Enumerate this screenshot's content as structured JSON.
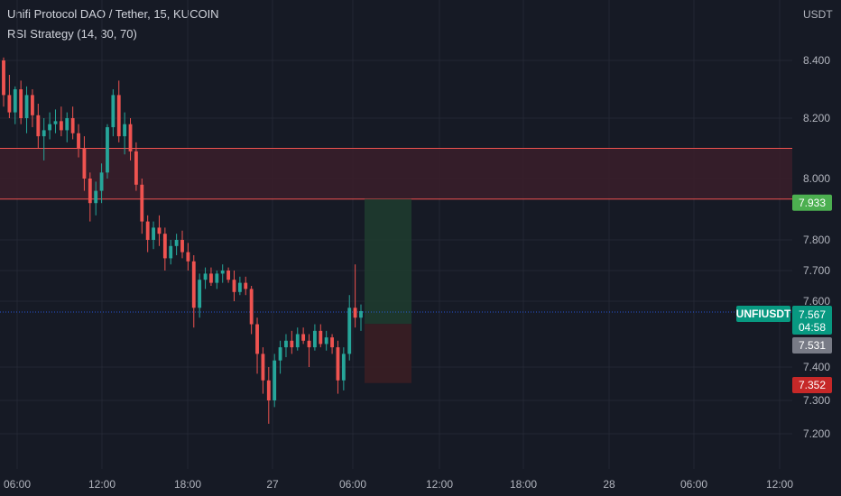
{
  "header": {
    "symbol_title": "Unifi Protocol DAO / Tether, 15, KUCOIN",
    "indicator": "RSI Strategy (14, 30, 70)",
    "currency": "USDT"
  },
  "price_tags": {
    "zone_bottom": "7.933",
    "symbol_label": "UNFIUSDT",
    "last_price": "7.567",
    "countdown": "04:58",
    "entry": "7.531",
    "stop": "7.352"
  },
  "colors": {
    "background": "#161a25",
    "grid": "#232733",
    "up": "#26a69a",
    "down": "#ef5350",
    "zone_line": "#ef5350",
    "zone_fill": "#3a1f2a",
    "target_fill": "#1e3b2f",
    "stop_fill": "#3a1e23",
    "tag_green": "#4caf50",
    "tag_teal": "#089981",
    "tag_gray": "#787b86",
    "tag_red": "#c62828"
  },
  "chart_data": {
    "type": "candlestick",
    "y_axis_ticks": [
      "8.400",
      "8.200",
      "8.000",
      "7.800",
      "7.700",
      "7.600",
      "7.400",
      "7.300",
      "7.200"
    ],
    "x_axis_ticks": [
      "06:00",
      "12:00",
      "18:00",
      "27",
      "06:00",
      "12:00",
      "18:00",
      "28",
      "06:00",
      "12:00"
    ],
    "ylim": [
      7.16,
      8.55
    ],
    "resistance_zone": {
      "low": 7.933,
      "high": 8.1
    },
    "position": {
      "entry": 7.531,
      "target": 7.933,
      "stop": 7.352
    },
    "last_price": 7.567,
    "candles": [
      {
        "o": 8.4,
        "h": 8.41,
        "l": 8.24,
        "c": 8.28
      },
      {
        "o": 8.28,
        "h": 8.35,
        "l": 8.2,
        "c": 8.22
      },
      {
        "o": 8.22,
        "h": 8.31,
        "l": 8.18,
        "c": 8.3
      },
      {
        "o": 8.3,
        "h": 8.33,
        "l": 8.18,
        "c": 8.2
      },
      {
        "o": 8.2,
        "h": 8.31,
        "l": 8.15,
        "c": 8.28
      },
      {
        "o": 8.28,
        "h": 8.3,
        "l": 8.17,
        "c": 8.21
      },
      {
        "o": 8.21,
        "h": 8.25,
        "l": 8.1,
        "c": 8.14
      },
      {
        "o": 8.14,
        "h": 8.2,
        "l": 8.06,
        "c": 8.16
      },
      {
        "o": 8.16,
        "h": 8.22,
        "l": 8.13,
        "c": 8.18
      },
      {
        "o": 8.18,
        "h": 8.23,
        "l": 8.15,
        "c": 8.19
      },
      {
        "o": 8.19,
        "h": 8.24,
        "l": 8.14,
        "c": 8.16
      },
      {
        "o": 8.16,
        "h": 8.22,
        "l": 8.12,
        "c": 8.2
      },
      {
        "o": 8.2,
        "h": 8.24,
        "l": 8.13,
        "c": 8.15
      },
      {
        "o": 8.15,
        "h": 8.18,
        "l": 8.07,
        "c": 8.1
      },
      {
        "o": 8.1,
        "h": 8.14,
        "l": 7.96,
        "c": 8.0
      },
      {
        "o": 8.0,
        "h": 8.02,
        "l": 7.86,
        "c": 7.92
      },
      {
        "o": 7.92,
        "h": 7.99,
        "l": 7.88,
        "c": 7.96
      },
      {
        "o": 7.96,
        "h": 8.05,
        "l": 7.92,
        "c": 8.02
      },
      {
        "o": 8.02,
        "h": 8.18,
        "l": 8.0,
        "c": 8.17
      },
      {
        "o": 8.17,
        "h": 8.3,
        "l": 8.14,
        "c": 8.28
      },
      {
        "o": 8.28,
        "h": 8.33,
        "l": 8.12,
        "c": 8.14
      },
      {
        "o": 8.14,
        "h": 8.22,
        "l": 8.08,
        "c": 8.18
      },
      {
        "o": 8.18,
        "h": 8.2,
        "l": 8.06,
        "c": 8.09
      },
      {
        "o": 8.09,
        "h": 8.12,
        "l": 7.96,
        "c": 7.98
      },
      {
        "o": 7.98,
        "h": 8.0,
        "l": 7.82,
        "c": 7.86
      },
      {
        "o": 7.86,
        "h": 7.88,
        "l": 7.76,
        "c": 7.8
      },
      {
        "o": 7.8,
        "h": 7.86,
        "l": 7.77,
        "c": 7.84
      },
      {
        "o": 7.84,
        "h": 7.88,
        "l": 7.78,
        "c": 7.82
      },
      {
        "o": 7.82,
        "h": 7.84,
        "l": 7.7,
        "c": 7.74
      },
      {
        "o": 7.74,
        "h": 7.8,
        "l": 7.72,
        "c": 7.78
      },
      {
        "o": 7.78,
        "h": 7.82,
        "l": 7.75,
        "c": 7.8
      },
      {
        "o": 7.8,
        "h": 7.83,
        "l": 7.74,
        "c": 7.76
      },
      {
        "o": 7.76,
        "h": 7.79,
        "l": 7.7,
        "c": 7.73
      },
      {
        "o": 7.73,
        "h": 7.75,
        "l": 7.52,
        "c": 7.58
      },
      {
        "o": 7.58,
        "h": 7.69,
        "l": 7.55,
        "c": 7.67
      },
      {
        "o": 7.67,
        "h": 7.71,
        "l": 7.64,
        "c": 7.69
      },
      {
        "o": 7.69,
        "h": 7.71,
        "l": 7.65,
        "c": 7.66
      },
      {
        "o": 7.66,
        "h": 7.7,
        "l": 7.64,
        "c": 7.69
      },
      {
        "o": 7.69,
        "h": 7.72,
        "l": 7.66,
        "c": 7.7
      },
      {
        "o": 7.7,
        "h": 7.71,
        "l": 7.66,
        "c": 7.67
      },
      {
        "o": 7.67,
        "h": 7.7,
        "l": 7.6,
        "c": 7.63
      },
      {
        "o": 7.63,
        "h": 7.68,
        "l": 7.62,
        "c": 7.66
      },
      {
        "o": 7.66,
        "h": 7.68,
        "l": 7.62,
        "c": 7.64
      },
      {
        "o": 7.64,
        "h": 7.65,
        "l": 7.5,
        "c": 7.53
      },
      {
        "o": 7.53,
        "h": 7.55,
        "l": 7.38,
        "c": 7.44
      },
      {
        "o": 7.44,
        "h": 7.46,
        "l": 7.32,
        "c": 7.36
      },
      {
        "o": 7.36,
        "h": 7.4,
        "l": 7.23,
        "c": 7.3
      },
      {
        "o": 7.3,
        "h": 7.44,
        "l": 7.28,
        "c": 7.42
      },
      {
        "o": 7.42,
        "h": 7.48,
        "l": 7.38,
        "c": 7.46
      },
      {
        "o": 7.46,
        "h": 7.5,
        "l": 7.43,
        "c": 7.48
      },
      {
        "o": 7.48,
        "h": 7.51,
        "l": 7.44,
        "c": 7.46
      },
      {
        "o": 7.46,
        "h": 7.52,
        "l": 7.45,
        "c": 7.5
      },
      {
        "o": 7.5,
        "h": 7.52,
        "l": 7.47,
        "c": 7.48
      },
      {
        "o": 7.48,
        "h": 7.5,
        "l": 7.4,
        "c": 7.46
      },
      {
        "o": 7.46,
        "h": 7.53,
        "l": 7.45,
        "c": 7.51
      },
      {
        "o": 7.51,
        "h": 7.53,
        "l": 7.46,
        "c": 7.47
      },
      {
        "o": 7.47,
        "h": 7.51,
        "l": 7.45,
        "c": 7.49
      },
      {
        "o": 7.49,
        "h": 7.5,
        "l": 7.44,
        "c": 7.46
      },
      {
        "o": 7.46,
        "h": 7.48,
        "l": 7.32,
        "c": 7.36
      },
      {
        "o": 7.36,
        "h": 7.46,
        "l": 7.33,
        "c": 7.44
      },
      {
        "o": 7.44,
        "h": 7.62,
        "l": 7.42,
        "c": 7.58
      },
      {
        "o": 7.58,
        "h": 7.72,
        "l": 7.52,
        "c": 7.55
      },
      {
        "o": 7.55,
        "h": 7.59,
        "l": 7.51,
        "c": 7.57
      }
    ]
  }
}
